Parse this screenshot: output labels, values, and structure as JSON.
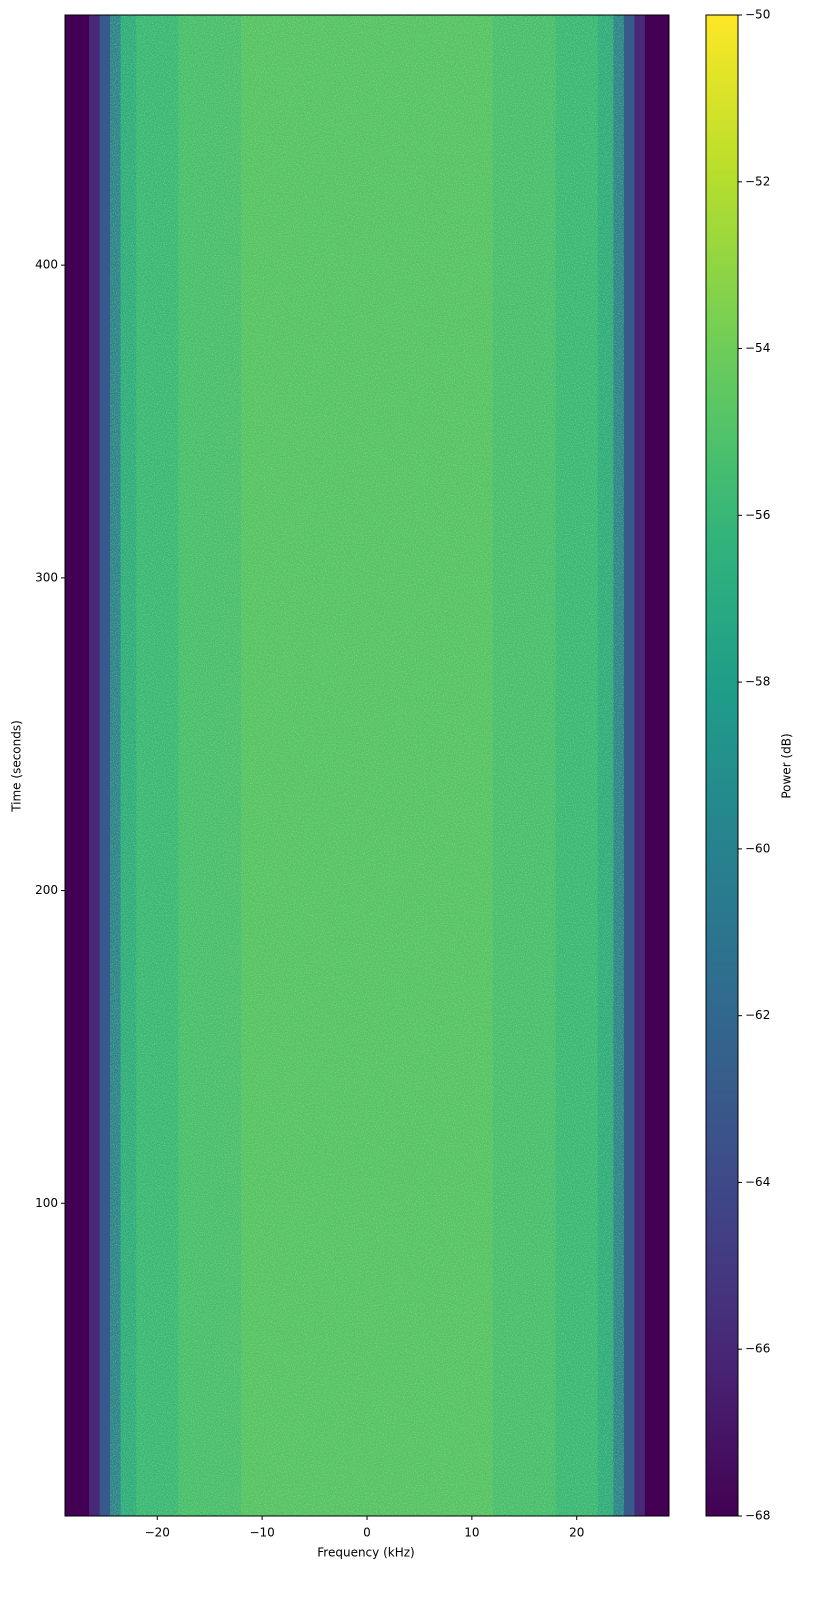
{
  "chart_data": {
    "type": "heatmap",
    "xlabel": "Frequency (kHz)",
    "ylabel": "Time (seconds)",
    "colorbar_label": "Power (dB)",
    "colormap": "viridis",
    "x": [
      -28.8,
      -26.5,
      -25.5,
      -24.5,
      -23.5,
      -22,
      -18,
      -12,
      -6,
      0,
      6,
      12,
      18,
      22,
      23.5,
      24.5,
      25.5,
      26.5,
      28.8
    ],
    "y": [
      0,
      480
    ],
    "z": [
      [
        -68,
        -66,
        -63,
        -60,
        -57,
        -56,
        -55.5,
        -55,
        -55,
        -55,
        -55,
        -55.5,
        -56,
        -57,
        -60,
        -63,
        -66,
        -68
      ]
    ],
    "xlim": [
      -28.8,
      28.8
    ],
    "ylim": [
      0,
      480
    ],
    "zlim": [
      -68,
      -50
    ],
    "xticks": [
      {
        "value": -20,
        "label": "−20"
      },
      {
        "value": -10,
        "label": "−10"
      },
      0,
      10,
      20
    ],
    "yticks": [
      100,
      200,
      300,
      400
    ],
    "zticks": [
      {
        "value": -68,
        "label": "−68"
      },
      {
        "value": -66,
        "label": "−66"
      },
      {
        "value": -64,
        "label": "−64"
      },
      {
        "value": -62,
        "label": "−62"
      },
      {
        "value": -60,
        "label": "−60"
      },
      {
        "value": -58,
        "label": "−58"
      },
      {
        "value": -56,
        "label": "−56"
      },
      {
        "value": -54,
        "label": "−54"
      },
      {
        "value": -52,
        "label": "−52"
      },
      {
        "value": -50,
        "label": "−50"
      }
    ]
  }
}
